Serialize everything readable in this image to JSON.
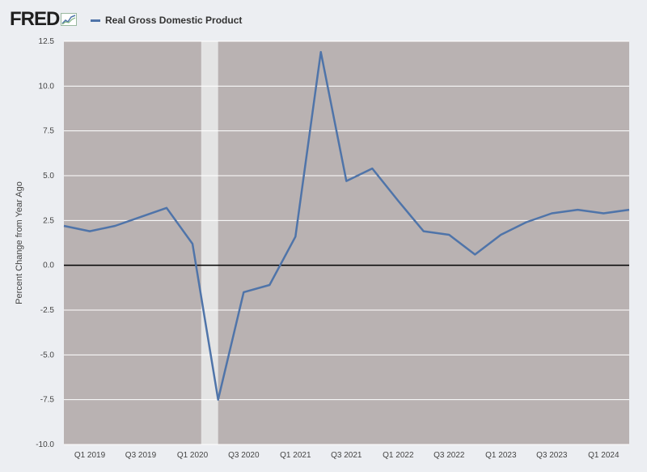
{
  "header": {
    "logo_text": "FRED",
    "legend_label": "Real Gross Domestic Product"
  },
  "colors": {
    "series": "#4f74a9",
    "plot_bg": "#b9b2b2",
    "recession": "#e4e4e4",
    "zero_line": "#000000",
    "grid": "#ffffff"
  },
  "chart_data": {
    "type": "line",
    "title": "",
    "xlabel": "",
    "ylabel": "Percent Change from Year Ago",
    "ylim": [
      -10.0,
      12.5
    ],
    "y_ticks": [
      "12.5",
      "10.0",
      "7.5",
      "5.0",
      "2.5",
      "0.0",
      "-2.5",
      "-5.0",
      "-7.5",
      "-10.0"
    ],
    "x_tick_labels": [
      "Q1 2019",
      "Q3 2019",
      "Q1 2020",
      "Q3 2020",
      "Q1 2021",
      "Q3 2021",
      "Q1 2022",
      "Q3 2022",
      "Q1 2023",
      "Q3 2023",
      "Q1 2024"
    ],
    "grid": true,
    "legend_position": "top-left",
    "recession": {
      "start": "2020-02-01",
      "end": "2020-04-01"
    },
    "series": [
      {
        "name": "Real Gross Domestic Product",
        "x": [
          "2018-10-01",
          "2019-01-01",
          "2019-04-01",
          "2019-07-01",
          "2019-10-01",
          "2020-01-01",
          "2020-04-01",
          "2020-07-01",
          "2020-10-01",
          "2021-01-01",
          "2021-04-01",
          "2021-07-01",
          "2021-10-01",
          "2022-01-01",
          "2022-04-01",
          "2022-07-01",
          "2022-10-01",
          "2023-01-01",
          "2023-04-01",
          "2023-07-01",
          "2023-10-01",
          "2024-01-01",
          "2024-04-01"
        ],
        "values": [
          2.2,
          1.9,
          2.2,
          2.7,
          3.2,
          1.2,
          -7.5,
          -1.5,
          -1.1,
          1.6,
          11.9,
          4.7,
          5.4,
          3.6,
          1.9,
          1.7,
          0.6,
          1.7,
          2.4,
          2.9,
          3.1,
          2.9,
          3.1
        ]
      }
    ]
  }
}
